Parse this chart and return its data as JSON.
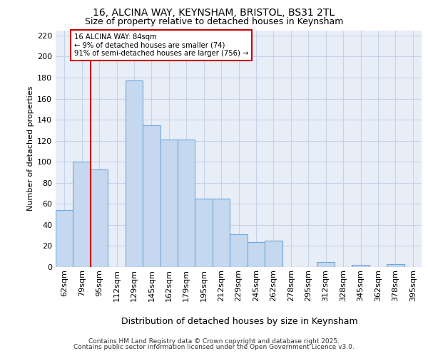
{
  "title_line1": "16, ALCINA WAY, KEYNSHAM, BRISTOL, BS31 2TL",
  "title_line2": "Size of property relative to detached houses in Keynsham",
  "xlabel": "Distribution of detached houses by size in Keynsham",
  "ylabel": "Number of detached properties",
  "categories": [
    "62sqm",
    "79sqm",
    "95sqm",
    "112sqm",
    "129sqm",
    "145sqm",
    "162sqm",
    "179sqm",
    "195sqm",
    "212sqm",
    "229sqm",
    "245sqm",
    "262sqm",
    "278sqm",
    "295sqm",
    "312sqm",
    "328sqm",
    "345sqm",
    "362sqm",
    "378sqm",
    "395sqm"
  ],
  "bar_heights": [
    54,
    100,
    93,
    0,
    177,
    135,
    121,
    121,
    65,
    65,
    31,
    24,
    25,
    0,
    0,
    5,
    0,
    2,
    0,
    3,
    0
  ],
  "bar_color": "#c5d8f0",
  "bar_edge_color": "#6fa8d8",
  "grid_color": "#c5d3e8",
  "background_color": "#e8eef8",
  "annotation_text": "16 ALCINA WAY: 84sqm\n← 9% of detached houses are smaller (74)\n91% of semi-detached houses are larger (756) →",
  "ann_box_edgecolor": "#cc0000",
  "vline_color": "#cc0000",
  "vline_x": 1.5,
  "ylim": [
    0,
    225
  ],
  "yticks": [
    0,
    20,
    40,
    60,
    80,
    100,
    120,
    140,
    160,
    180,
    200,
    220
  ],
  "footer_line1": "Contains HM Land Registry data © Crown copyright and database right 2025.",
  "footer_line2": "Contains public sector information licensed under the Open Government Licence v3.0.",
  "title_fontsize": 10,
  "subtitle_fontsize": 9,
  "ylabel_fontsize": 8,
  "xlabel_fontsize": 9,
  "tick_fontsize": 8,
  "xtick_fontsize": 8,
  "footer_fontsize": 6.5
}
